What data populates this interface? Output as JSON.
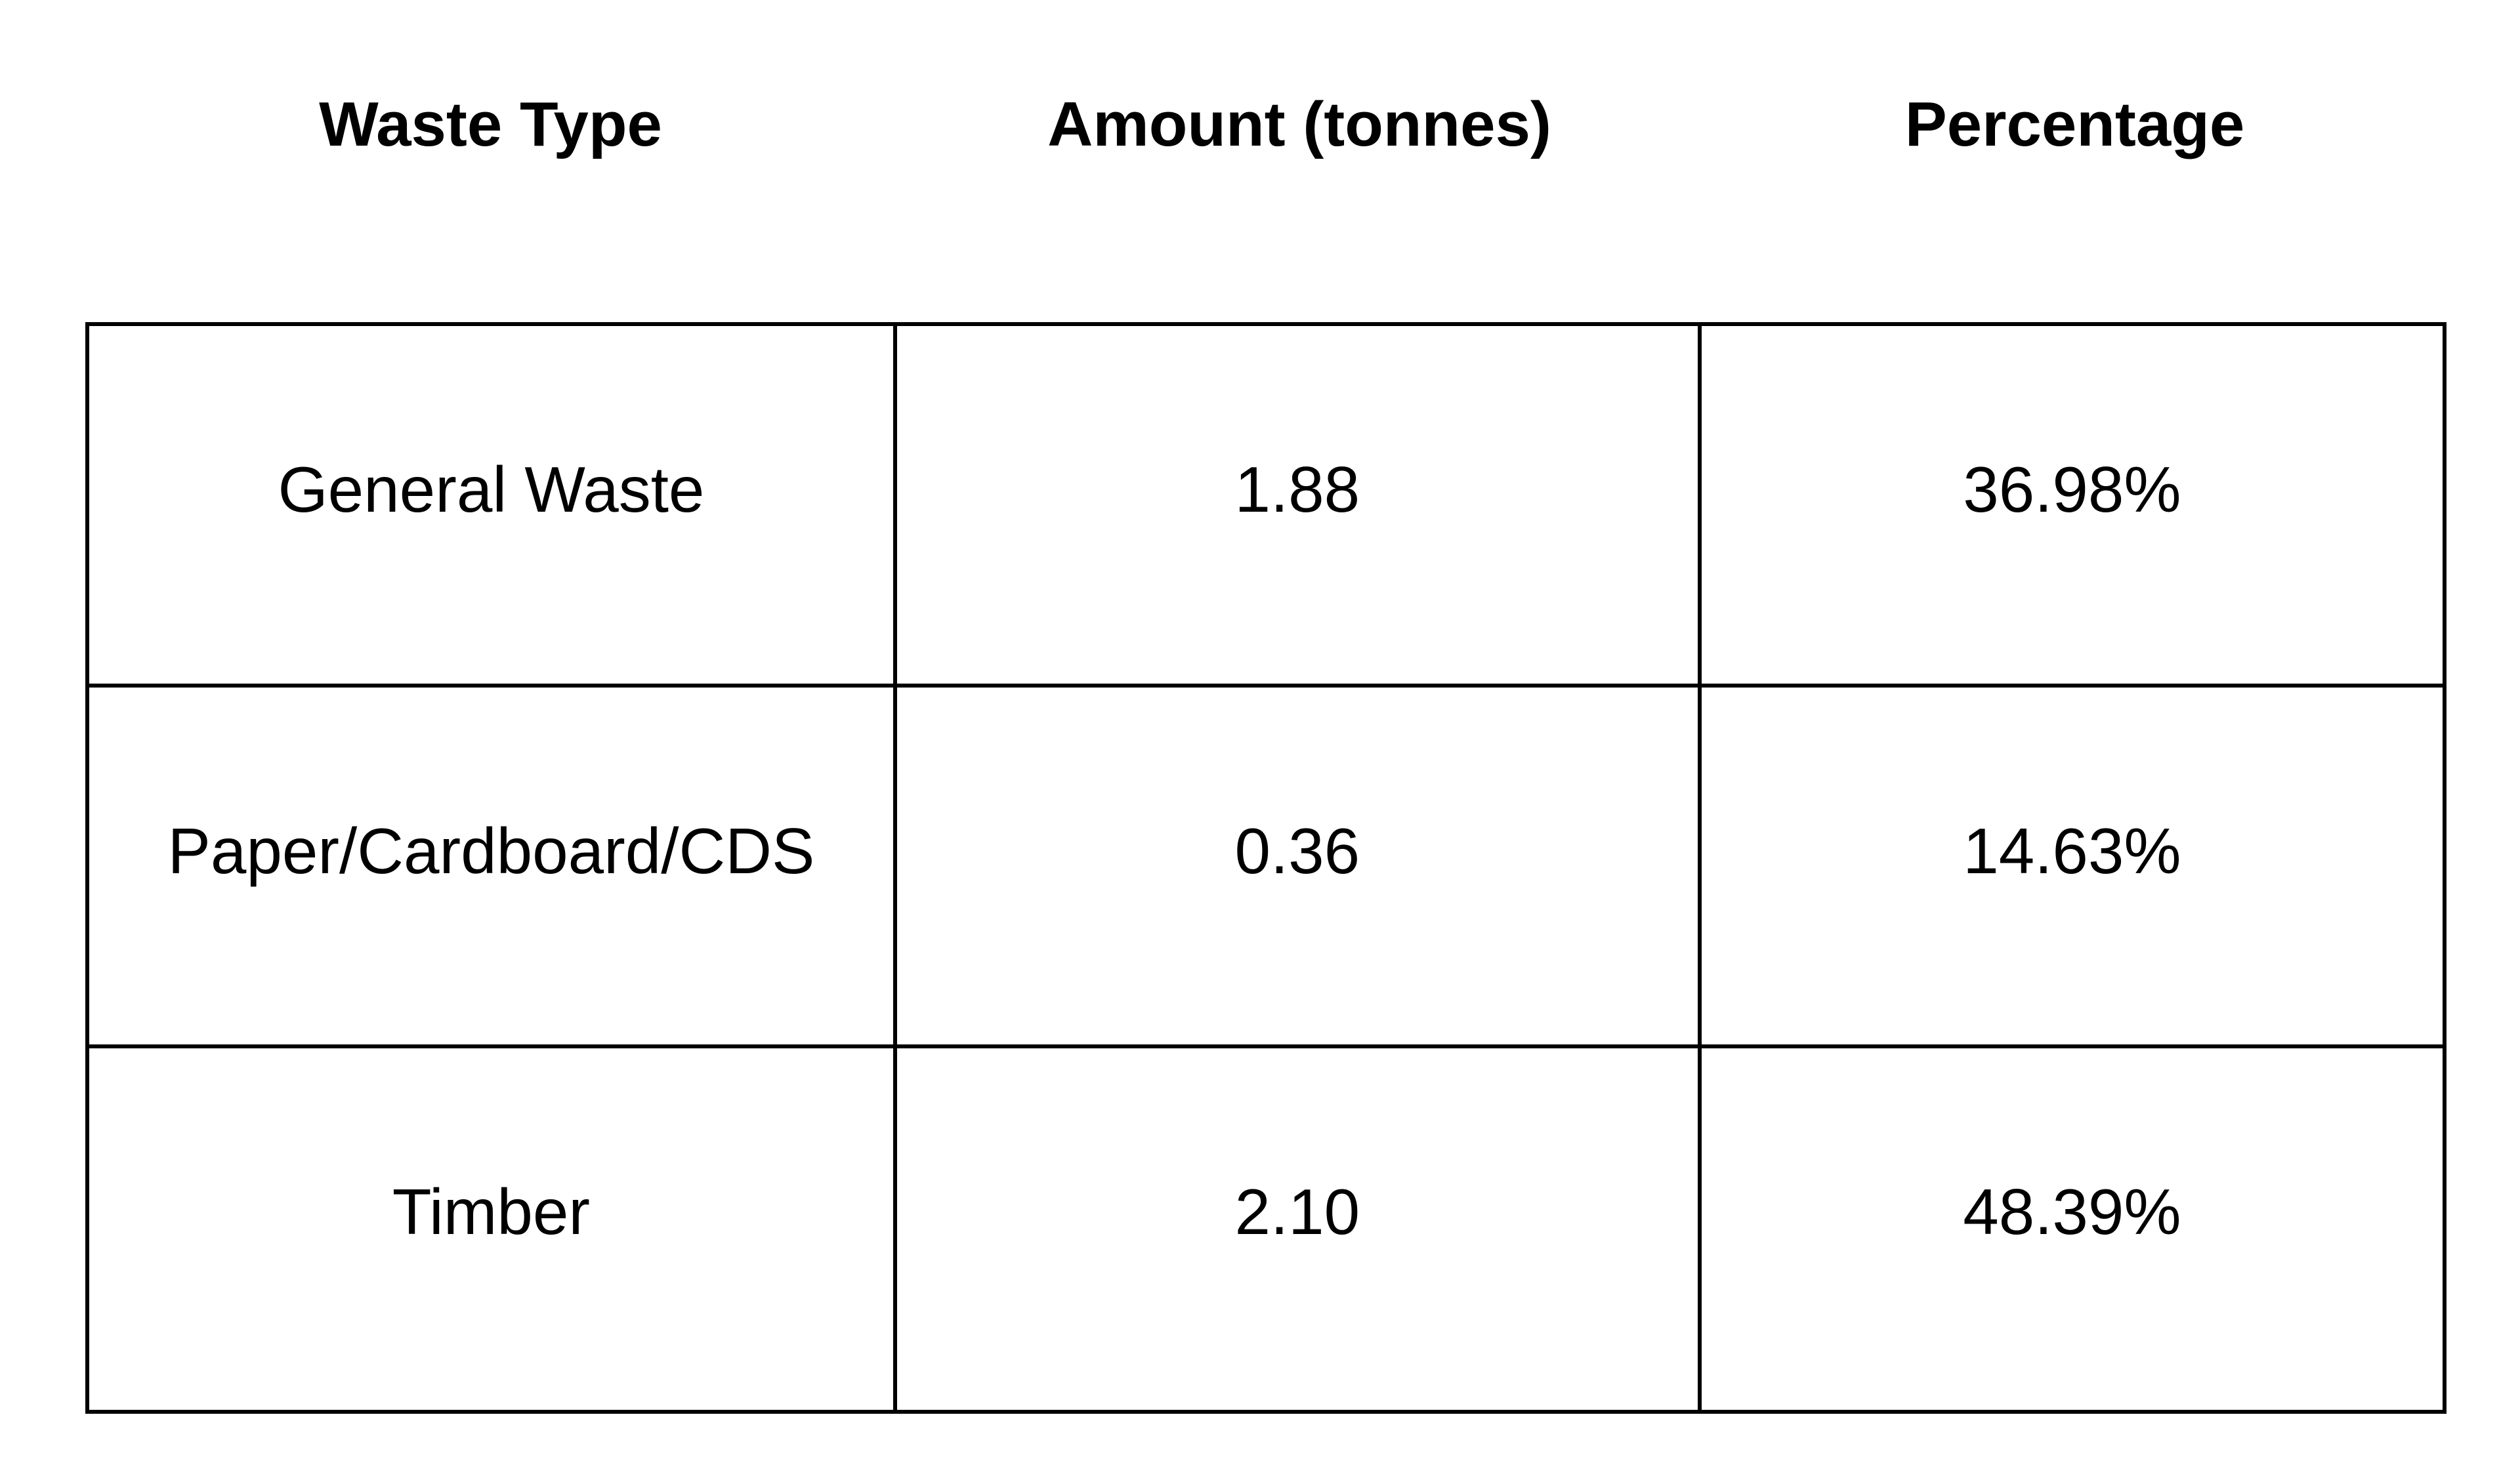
{
  "styles": {
    "background_color": "#ffffff",
    "text_color": "#000000",
    "border_color": "#000000"
  },
  "chart_data": {
    "type": "table",
    "title": "",
    "columns": [
      "Waste Type",
      "Amount (tonnes)",
      "Percentage"
    ],
    "rows": [
      {
        "waste_type": "General Waste",
        "amount": "1.88",
        "percentage": "36.98%"
      },
      {
        "waste_type": "Paper/Cardboard/CDS",
        "amount": "0.36",
        "percentage": "14.63%"
      },
      {
        "waste_type": "Timber",
        "amount": "2.10",
        "percentage": "48.39%"
      }
    ],
    "amounts_tonnes": [
      1.88,
      0.36,
      2.1
    ],
    "percentages": [
      36.98,
      14.63,
      48.39
    ],
    "layout_hints": {
      "header_row_outside_borders": true,
      "grid": "on",
      "cell_text_align": "center"
    }
  }
}
